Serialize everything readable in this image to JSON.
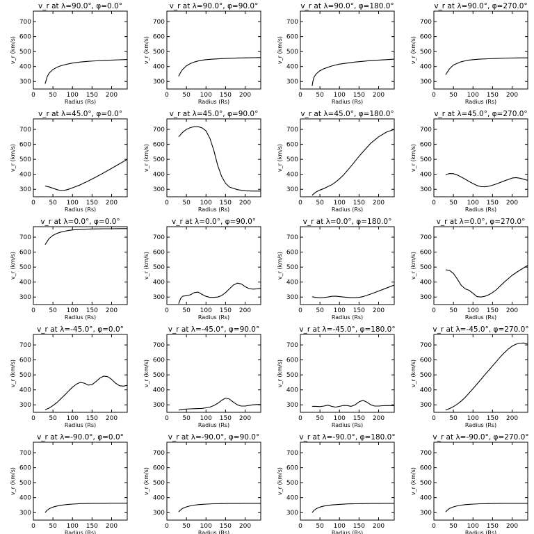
{
  "figure": {
    "background": "#ffffff",
    "line_color": "#000000"
  },
  "chart_data": [
    {
      "type": "line",
      "title": "v_r at λ=90.0°, φ=0.0°",
      "xlabel": "Radius (Rs)",
      "ylabel": "v_r (km/s)",
      "xlim": [
        0,
        240
      ],
      "ylim": [
        250,
        770
      ],
      "xticks": [
        0,
        50,
        100,
        150,
        200
      ],
      "yticks": [
        300,
        400,
        500,
        600,
        700
      ],
      "x": [
        30,
        35,
        40,
        50,
        60,
        70,
        80,
        90,
        100,
        120,
        140,
        160,
        180,
        200,
        220,
        240
      ],
      "y": [
        285,
        330,
        355,
        380,
        395,
        405,
        412,
        418,
        423,
        430,
        435,
        438,
        441,
        443,
        445,
        447
      ]
    },
    {
      "type": "line",
      "title": "v_r at λ=90.0°, φ=90.0°",
      "xlabel": "Radius (Rs)",
      "ylabel": "v_r (km/s)",
      "xlim": [
        0,
        240
      ],
      "ylim": [
        250,
        770
      ],
      "xticks": [
        0,
        50,
        100,
        150,
        200
      ],
      "yticks": [
        300,
        400,
        500,
        600,
        700
      ],
      "x": [
        30,
        35,
        40,
        50,
        60,
        70,
        80,
        90,
        100,
        120,
        140,
        160,
        180,
        200,
        220,
        240
      ],
      "y": [
        335,
        360,
        380,
        405,
        420,
        430,
        437,
        442,
        446,
        450,
        453,
        455,
        457,
        458,
        459,
        460
      ]
    },
    {
      "type": "line",
      "title": "v_r at λ=90.0°, φ=180.0°",
      "xlabel": "Radius (Rs)",
      "ylabel": "v_r (km/s)",
      "xlim": [
        0,
        240
      ],
      "ylim": [
        250,
        770
      ],
      "xticks": [
        0,
        50,
        100,
        150,
        200
      ],
      "yticks": [
        300,
        400,
        500,
        600,
        700
      ],
      "x": [
        30,
        32,
        35,
        40,
        50,
        60,
        70,
        80,
        90,
        100,
        120,
        140,
        160,
        180,
        200,
        220,
        240
      ],
      "y": [
        270,
        300,
        330,
        350,
        372,
        385,
        395,
        403,
        410,
        416,
        423,
        430,
        435,
        440,
        443,
        446,
        449
      ]
    },
    {
      "type": "line",
      "title": "v_r at λ=90.0°, φ=270.0°",
      "xlabel": "Radius (Rs)",
      "ylabel": "v_r (km/s)",
      "xlim": [
        0,
        240
      ],
      "ylim": [
        250,
        770
      ],
      "xticks": [
        0,
        50,
        100,
        150,
        200
      ],
      "yticks": [
        300,
        400,
        500,
        600,
        700
      ],
      "x": [
        30,
        35,
        40,
        50,
        60,
        70,
        80,
        90,
        100,
        120,
        140,
        160,
        180,
        200,
        220,
        240
      ],
      "y": [
        345,
        365,
        385,
        410,
        422,
        432,
        438,
        443,
        446,
        450,
        452,
        454,
        456,
        457,
        458,
        458
      ]
    },
    {
      "type": "line",
      "title": "v_r at λ=45.0°, φ=0.0°",
      "xlabel": "Radius (Rs)",
      "ylabel": "v_r (km/s)",
      "xlim": [
        0,
        240
      ],
      "ylim": [
        250,
        770
      ],
      "xticks": [
        0,
        50,
        100,
        150,
        200
      ],
      "yticks": [
        300,
        400,
        500,
        600,
        700
      ],
      "x": [
        30,
        40,
        50,
        60,
        70,
        80,
        90,
        100,
        120,
        140,
        160,
        180,
        200,
        220,
        240
      ],
      "y": [
        322,
        316,
        307,
        298,
        292,
        293,
        300,
        310,
        330,
        355,
        382,
        410,
        440,
        470,
        500
      ]
    },
    {
      "type": "line",
      "title": "v_r at λ=45.0°, φ=90.0°",
      "xlabel": "Radius (Rs)",
      "ylabel": "v_r (km/s)",
      "xlim": [
        0,
        240
      ],
      "ylim": [
        250,
        770
      ],
      "xticks": [
        0,
        50,
        100,
        150,
        200
      ],
      "yticks": [
        300,
        400,
        500,
        600,
        700
      ],
      "x": [
        30,
        40,
        50,
        60,
        70,
        80,
        90,
        100,
        110,
        120,
        130,
        140,
        150,
        160,
        180,
        200,
        220,
        240
      ],
      "y": [
        650,
        680,
        700,
        712,
        718,
        718,
        710,
        690,
        640,
        560,
        460,
        385,
        340,
        315,
        298,
        290,
        288,
        288
      ]
    },
    {
      "type": "line",
      "title": "v_r at λ=45.0°, φ=180.0°",
      "xlabel": "Radius (Rs)",
      "ylabel": "v_r (km/s)",
      "xlim": [
        0,
        240
      ],
      "ylim": [
        250,
        770
      ],
      "xticks": [
        0,
        50,
        100,
        150,
        200
      ],
      "yticks": [
        300,
        400,
        500,
        600,
        700
      ],
      "x": [
        30,
        40,
        50,
        60,
        70,
        80,
        90,
        100,
        110,
        120,
        130,
        140,
        150,
        160,
        180,
        200,
        220,
        240
      ],
      "y": [
        260,
        282,
        295,
        305,
        318,
        330,
        348,
        370,
        395,
        425,
        455,
        488,
        520,
        550,
        608,
        650,
        682,
        700
      ]
    },
    {
      "type": "line",
      "title": "v_r at λ=45.0°, φ=270.0°",
      "xlabel": "Radius (Rs)",
      "ylabel": "v_r (km/s)",
      "xlim": [
        0,
        240
      ],
      "ylim": [
        250,
        770
      ],
      "xticks": [
        0,
        50,
        100,
        150,
        200
      ],
      "yticks": [
        300,
        400,
        500,
        600,
        700
      ],
      "x": [
        30,
        40,
        50,
        60,
        70,
        80,
        90,
        100,
        110,
        120,
        130,
        140,
        150,
        160,
        180,
        200,
        210,
        220,
        240
      ],
      "y": [
        398,
        405,
        404,
        395,
        382,
        368,
        352,
        338,
        325,
        318,
        317,
        320,
        327,
        336,
        356,
        375,
        378,
        374,
        360
      ]
    },
    {
      "type": "line",
      "title": "v_r at λ=0.0°, φ=0.0°",
      "xlabel": "Radius (Rs)",
      "ylabel": "v_r (km/s)",
      "xlim": [
        0,
        240
      ],
      "ylim": [
        250,
        770
      ],
      "xticks": [
        0,
        50,
        100,
        150,
        200
      ],
      "yticks": [
        300,
        400,
        500,
        600,
        700
      ],
      "x": [
        30,
        40,
        50,
        60,
        70,
        80,
        90,
        100,
        120,
        140,
        160,
        180,
        200,
        220,
        240
      ],
      "y": [
        650,
        690,
        712,
        725,
        734,
        740,
        745,
        748,
        752,
        754,
        755,
        756,
        756,
        757,
        757
      ]
    },
    {
      "type": "line",
      "title": "v_r at λ=0.0°, φ=90.0°",
      "xlabel": "Radius (Rs)",
      "ylabel": "v_r (km/s)",
      "xlim": [
        0,
        240
      ],
      "ylim": [
        250,
        770
      ],
      "xticks": [
        0,
        50,
        100,
        150,
        200
      ],
      "yticks": [
        300,
        400,
        500,
        600,
        700
      ],
      "x": [
        30,
        35,
        40,
        50,
        60,
        70,
        80,
        90,
        100,
        110,
        120,
        130,
        140,
        150,
        160,
        170,
        180,
        190,
        200,
        210,
        220,
        230,
        240
      ],
      "y": [
        255,
        290,
        305,
        310,
        315,
        330,
        333,
        318,
        305,
        298,
        298,
        300,
        310,
        330,
        355,
        380,
        393,
        388,
        370,
        357,
        353,
        355,
        358
      ]
    },
    {
      "type": "line",
      "title": "v_r at λ=0.0°, φ=180.0°",
      "xlabel": "Radius (Rs)",
      "ylabel": "v_r (km/s)",
      "xlim": [
        0,
        240
      ],
      "ylim": [
        250,
        770
      ],
      "xticks": [
        0,
        50,
        100,
        150,
        200
      ],
      "yticks": [
        300,
        400,
        500,
        600,
        700
      ],
      "x": [
        30,
        40,
        50,
        60,
        70,
        80,
        90,
        100,
        110,
        120,
        130,
        140,
        150,
        160,
        180,
        200,
        220,
        240
      ],
      "y": [
        302,
        298,
        295,
        297,
        300,
        305,
        306,
        303,
        300,
        298,
        296,
        296,
        298,
        303,
        320,
        340,
        360,
        380
      ]
    },
    {
      "type": "line",
      "title": "v_r at λ=0.0°, φ=270.0°",
      "xlabel": "Radius (Rs)",
      "ylabel": "v_r (km/s)",
      "xlim": [
        0,
        240
      ],
      "ylim": [
        250,
        770
      ],
      "xticks": [
        0,
        50,
        100,
        150,
        200
      ],
      "yticks": [
        300,
        400,
        500,
        600,
        700
      ],
      "x": [
        30,
        40,
        50,
        60,
        70,
        80,
        90,
        100,
        110,
        120,
        130,
        140,
        150,
        160,
        180,
        200,
        220,
        240
      ],
      "y": [
        482,
        478,
        458,
        420,
        378,
        355,
        345,
        325,
        303,
        300,
        305,
        315,
        330,
        350,
        400,
        445,
        480,
        512
      ]
    },
    {
      "type": "line",
      "title": "v_r at λ=-45.0°, φ=0.0°",
      "xlabel": "Radius (Rs)",
      "ylabel": "v_r (km/s)",
      "xlim": [
        0,
        240
      ],
      "ylim": [
        250,
        770
      ],
      "xticks": [
        0,
        50,
        100,
        150,
        200
      ],
      "yticks": [
        300,
        400,
        500,
        600,
        700
      ],
      "x": [
        30,
        40,
        50,
        60,
        70,
        80,
        90,
        100,
        110,
        120,
        130,
        140,
        150,
        160,
        170,
        180,
        190,
        200,
        210,
        220,
        230,
        240
      ],
      "y": [
        268,
        278,
        295,
        315,
        340,
        365,
        392,
        418,
        438,
        450,
        445,
        432,
        435,
        455,
        478,
        492,
        488,
        470,
        445,
        428,
        425,
        430
      ]
    },
    {
      "type": "line",
      "title": "v_r at λ=-45.0°, φ=90.0°",
      "xlabel": "Radius (Rs)",
      "ylabel": "v_r (km/s)",
      "xlim": [
        0,
        240
      ],
      "ylim": [
        250,
        770
      ],
      "xticks": [
        0,
        50,
        100,
        150,
        200
      ],
      "yticks": [
        300,
        400,
        500,
        600,
        700
      ],
      "x": [
        30,
        40,
        50,
        60,
        70,
        80,
        90,
        100,
        110,
        120,
        130,
        140,
        150,
        160,
        170,
        180,
        190,
        200,
        210,
        220,
        230,
        240
      ],
      "y": [
        265,
        270,
        272,
        273,
        274,
        275,
        276,
        280,
        285,
        295,
        310,
        330,
        345,
        338,
        318,
        300,
        292,
        292,
        296,
        300,
        302,
        302
      ]
    },
    {
      "type": "line",
      "title": "v_r at λ=-45.0°, φ=180.0°",
      "xlabel": "Radius (Rs)",
      "ylabel": "v_r (km/s)",
      "xlim": [
        0,
        240
      ],
      "ylim": [
        250,
        770
      ],
      "xticks": [
        0,
        50,
        100,
        150,
        200
      ],
      "yticks": [
        300,
        400,
        500,
        600,
        700
      ],
      "x": [
        30,
        40,
        50,
        60,
        70,
        80,
        90,
        100,
        110,
        120,
        130,
        140,
        150,
        160,
        170,
        180,
        190,
        200,
        210,
        220,
        230,
        240
      ],
      "y": [
        290,
        290,
        288,
        292,
        298,
        290,
        285,
        290,
        296,
        295,
        290,
        300,
        320,
        330,
        318,
        300,
        292,
        292,
        294,
        295,
        295,
        295
      ]
    },
    {
      "type": "line",
      "title": "v_r at λ=-45.0°, φ=270.0°",
      "xlabel": "Radius (Rs)",
      "ylabel": "v_r (km/s)",
      "xlim": [
        0,
        240
      ],
      "ylim": [
        250,
        770
      ],
      "xticks": [
        0,
        50,
        100,
        150,
        200
      ],
      "yticks": [
        300,
        400,
        500,
        600,
        700
      ],
      "x": [
        30,
        40,
        50,
        60,
        70,
        80,
        90,
        100,
        110,
        120,
        130,
        140,
        150,
        160,
        170,
        180,
        190,
        200,
        210,
        220,
        230,
        240
      ],
      "y": [
        265,
        275,
        288,
        305,
        325,
        350,
        378,
        408,
        438,
        468,
        500,
        530,
        560,
        590,
        620,
        648,
        672,
        692,
        705,
        712,
        713,
        705
      ]
    },
    {
      "type": "line",
      "title": "v_r at λ=-90.0°, φ=0.0°",
      "xlabel": "Radius (Rs)",
      "ylabel": "v_r (km/s)",
      "xlim": [
        0,
        240
      ],
      "ylim": [
        250,
        770
      ],
      "xticks": [
        0,
        50,
        100,
        150,
        200
      ],
      "yticks": [
        300,
        400,
        500,
        600,
        700
      ],
      "x": [
        30,
        35,
        40,
        50,
        60,
        70,
        80,
        90,
        100,
        120,
        140,
        160,
        180,
        200,
        220,
        240
      ],
      "y": [
        300,
        315,
        325,
        337,
        344,
        349,
        352,
        355,
        357,
        360,
        361,
        362,
        362,
        363,
        363,
        363
      ]
    },
    {
      "type": "line",
      "title": "v_r at λ=-90.0°, φ=90.0°",
      "xlabel": "Radius (Rs)",
      "ylabel": "v_r (km/s)",
      "xlim": [
        0,
        240
      ],
      "ylim": [
        250,
        770
      ],
      "xticks": [
        0,
        50,
        100,
        150,
        200
      ],
      "yticks": [
        300,
        400,
        500,
        600,
        700
      ],
      "x": [
        30,
        35,
        40,
        50,
        60,
        70,
        80,
        90,
        100,
        120,
        140,
        160,
        180,
        200,
        220,
        240
      ],
      "y": [
        305,
        318,
        328,
        338,
        345,
        350,
        353,
        355,
        357,
        359,
        360,
        361,
        361,
        362,
        362,
        362
      ]
    },
    {
      "type": "line",
      "title": "v_r at λ=-90.0°, φ=180.0°",
      "xlabel": "Radius (Rs)",
      "ylabel": "v_r (km/s)",
      "xlim": [
        0,
        240
      ],
      "ylim": [
        250,
        770
      ],
      "xticks": [
        0,
        50,
        100,
        150,
        200
      ],
      "yticks": [
        300,
        400,
        500,
        600,
        700
      ],
      "x": [
        30,
        35,
        40,
        50,
        60,
        70,
        80,
        90,
        100,
        120,
        140,
        160,
        180,
        200,
        220,
        240
      ],
      "y": [
        300,
        315,
        325,
        337,
        344,
        348,
        351,
        353,
        355,
        358,
        359,
        360,
        361,
        361,
        362,
        362
      ]
    },
    {
      "type": "line",
      "title": "v_r at λ=-90.0°, φ=270.0°",
      "xlabel": "Radius (Rs)",
      "ylabel": "v_r (km/s)",
      "xlim": [
        0,
        240
      ],
      "ylim": [
        250,
        770
      ],
      "xticks": [
        0,
        50,
        100,
        150,
        200
      ],
      "yticks": [
        300,
        400,
        500,
        600,
        700
      ],
      "x": [
        30,
        35,
        40,
        50,
        60,
        70,
        80,
        90,
        100,
        120,
        140,
        160,
        180,
        200,
        220,
        240
      ],
      "y": [
        305,
        318,
        328,
        338,
        345,
        350,
        353,
        355,
        357,
        359,
        360,
        361,
        362,
        362,
        362,
        362
      ]
    }
  ]
}
